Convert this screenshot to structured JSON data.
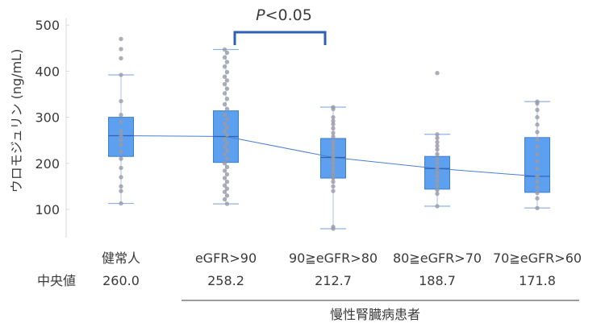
{
  "chart_data": {
    "type": "box",
    "ylabel": "ウロモジュリン (ng/mL)",
    "ylim": [
      40,
      520
    ],
    "yticks": [
      100,
      200,
      300,
      400,
      500
    ],
    "categories": [
      "健常人",
      "eGFR>90",
      "90≧eGFR>80",
      "80≧eGFR>70",
      "70≧eGFR>60"
    ],
    "median_row_label": "中央値",
    "median_labels": [
      "260.0",
      "258.2",
      "212.7",
      "188.7",
      "171.8"
    ],
    "group_label": "慢性腎臓病患者",
    "significance": "P<0.05",
    "significance_italic": "P",
    "significance_rest": "<0.05",
    "significance_between": [
      "eGFR>90",
      "90≧eGFR>80"
    ],
    "box_color": "#5ca0ef",
    "box_edge_color": "#3f7fd0",
    "point_color": "#9a9aa6",
    "line_color": "#4a7fd0",
    "bracket_color": "#2f5fb8",
    "boxes": [
      {
        "whislo": 113,
        "q1": 215,
        "med": 260.0,
        "q3": 300,
        "whishi": 392,
        "points": [
          470,
          448,
          428,
          392,
          335,
          305,
          290,
          270,
          260,
          250,
          240,
          225,
          210,
          190,
          170,
          150,
          140,
          113
        ]
      },
      {
        "whislo": 112,
        "q1": 202,
        "med": 258.2,
        "q3": 314,
        "whishi": 447,
        "points": [
          447,
          440,
          430,
          420,
          410,
          398,
          388,
          380,
          372,
          362,
          352,
          340,
          328,
          318,
          305,
          296,
          286,
          278,
          270,
          262,
          252,
          244,
          236,
          228,
          220,
          210,
          200,
          192,
          184,
          176,
          168,
          160,
          152,
          145,
          138,
          130,
          122,
          112
        ]
      },
      {
        "whislo": 58,
        "q1": 168,
        "med": 212.7,
        "q3": 254,
        "whishi": 322,
        "points": [
          322,
          318,
          300,
          292,
          285,
          276,
          266,
          258,
          248,
          240,
          232,
          224,
          215,
          208,
          200,
          192,
          184,
          176,
          168,
          160,
          150,
          140,
          62,
          58
        ]
      },
      {
        "whislo": 107,
        "q1": 144,
        "med": 188.7,
        "q3": 215,
        "whishi": 263,
        "points": [
          396,
          263,
          255,
          246,
          238,
          230,
          220,
          210,
          200,
          190,
          180,
          172,
          162,
          152,
          142,
          134,
          107
        ]
      },
      {
        "whislo": 103,
        "q1": 137,
        "med": 171.8,
        "q3": 256,
        "whishi": 334,
        "points": [
          334,
          330,
          316,
          300,
          284,
          268,
          252,
          236,
          220,
          204,
          188,
          172,
          160,
          148,
          136,
          124,
          103
        ]
      }
    ]
  }
}
